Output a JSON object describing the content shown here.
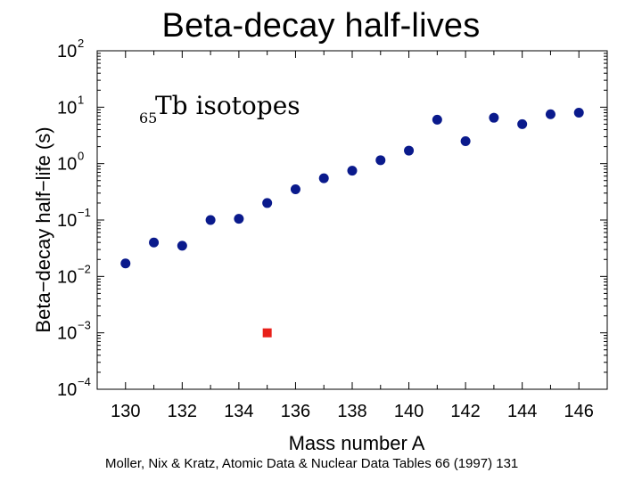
{
  "slide": {
    "title": "Beta-decay half-lives",
    "citation": "Moller, Nix & Kratz, Atomic Data & Nuclear Data Tables 66 (1997) 131"
  },
  "chart_data": {
    "type": "scatter",
    "title": "",
    "xlabel": "Mass number A",
    "ylabel": "Beta−decay half−life (s)",
    "xlim": [
      129,
      147
    ],
    "ylim": [
      0.0001,
      100
    ],
    "yscale": "log",
    "x_ticks": [
      "130",
      "132",
      "134",
      "136",
      "138",
      "140",
      "142",
      "144",
      "146"
    ],
    "y_ticks": [
      {
        "base": "10",
        "exp": "2",
        "value": 100
      },
      {
        "base": "10",
        "exp": "1",
        "value": 10
      },
      {
        "base": "10",
        "exp": "0",
        "value": 1
      },
      {
        "base": "10",
        "exp": "−1",
        "value": 0.1
      },
      {
        "base": "10",
        "exp": "−2",
        "value": 0.01
      },
      {
        "base": "10",
        "exp": "−3",
        "value": 0.001
      },
      {
        "base": "10",
        "exp": "−4",
        "value": 0.0001
      }
    ],
    "annotation": {
      "subscript": "65",
      "text": "Tb isotopes"
    },
    "grid": false,
    "series": [
      {
        "color": "#0a1a8c",
        "marker": "circle",
        "x": [
          130,
          131,
          132,
          133,
          134,
          135,
          136,
          137,
          138,
          139,
          140,
          141,
          142,
          143,
          144,
          145,
          146
        ],
        "y": [
          0.017,
          0.04,
          0.035,
          0.1,
          0.105,
          0.2,
          0.35,
          0.55,
          0.75,
          1.15,
          1.7,
          6.0,
          2.5,
          6.5,
          5.0,
          7.5,
          8.0
        ]
      },
      {
        "color": "#e8201a",
        "marker": "square",
        "x": [
          135
        ],
        "y": [
          0.001
        ]
      }
    ]
  }
}
